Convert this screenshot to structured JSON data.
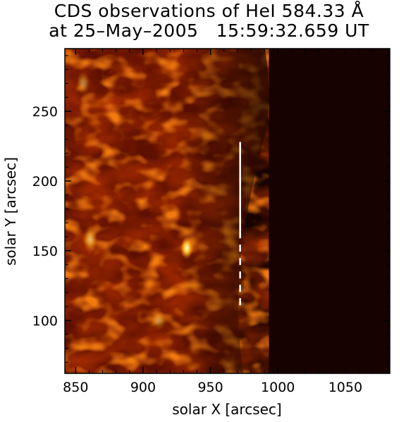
{
  "title": {
    "line1": "CDS observations of HeI 584.33 Å",
    "line2": "at 25–May–2005   15:59:32.659 UT"
  },
  "axes": {
    "xlabel": "solar X [arcsec]",
    "ylabel": "solar Y [arcsec]",
    "x_ticks": [
      "850",
      "900",
      "950",
      "1000",
      "1050"
    ],
    "y_ticks": [
      "100",
      "150",
      "200",
      "250"
    ],
    "xlim": [
      842,
      1083
    ],
    "ylim": [
      62,
      295
    ]
  },
  "image": {
    "colormap": "red-temperature",
    "limb_x": 970,
    "slit_x": 972,
    "slit_solid_y": [
      164,
      228
    ],
    "slit_dashed_y": [
      108,
      164
    ]
  }
}
